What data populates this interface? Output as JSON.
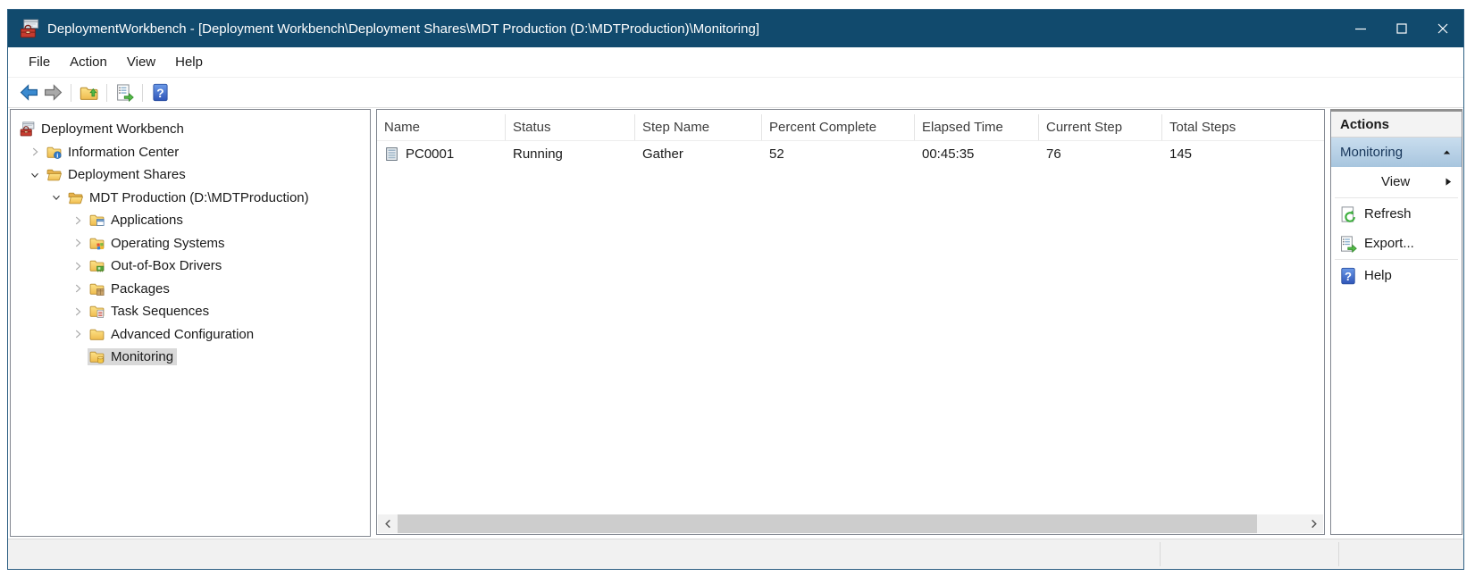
{
  "window": {
    "title": "DeploymentWorkbench - [Deployment Workbench\\Deployment Shares\\MDT Production (D:\\MDTProduction)\\Monitoring]",
    "app_icon": "toolbox-icon",
    "controls": [
      "minimize-icon",
      "maximize-icon",
      "close-icon"
    ]
  },
  "menu": {
    "items": [
      "File",
      "Action",
      "View",
      "Help"
    ]
  },
  "toolbar": {
    "items": [
      {
        "icon": "back-icon",
        "name": "back-button"
      },
      {
        "icon": "forward-icon",
        "name": "forward-button"
      },
      {
        "separator": true
      },
      {
        "icon": "up-one-level-icon",
        "name": "up-one-level-button"
      },
      {
        "separator": true
      },
      {
        "icon": "export-list-icon",
        "name": "export-list-button"
      },
      {
        "separator": true
      },
      {
        "icon": "help-icon",
        "name": "help-button"
      }
    ]
  },
  "tree": {
    "items": [
      {
        "label": "Deployment Workbench",
        "level": 0,
        "chevron": "none",
        "icon": "workbench-icon",
        "selected": false
      },
      {
        "label": "Information Center",
        "level": 1,
        "chevron": "collapsed",
        "icon": "folder-info-icon",
        "selected": false
      },
      {
        "label": "Deployment Shares",
        "level": 1,
        "chevron": "expanded",
        "icon": "folder-open-icon",
        "selected": false
      },
      {
        "label": "MDT Production (D:\\MDTProduction)",
        "level": 2,
        "chevron": "expanded",
        "icon": "folder-open-icon",
        "selected": false
      },
      {
        "label": "Applications",
        "level": 3,
        "chevron": "collapsed",
        "icon": "folder-app-icon",
        "selected": false
      },
      {
        "label": "Operating Systems",
        "level": 3,
        "chevron": "collapsed",
        "icon": "folder-os-icon",
        "selected": false
      },
      {
        "label": "Out-of-Box Drivers",
        "level": 3,
        "chevron": "collapsed",
        "icon": "folder-driver-icon",
        "selected": false
      },
      {
        "label": "Packages",
        "level": 3,
        "chevron": "collapsed",
        "icon": "folder-package-icon",
        "selected": false
      },
      {
        "label": "Task Sequences",
        "level": 3,
        "chevron": "collapsed",
        "icon": "folder-task-icon",
        "selected": false
      },
      {
        "label": "Advanced Configuration",
        "level": 3,
        "chevron": "collapsed",
        "icon": "folder-plain-icon",
        "selected": false
      },
      {
        "label": "Monitoring",
        "level": 3,
        "chevron": "none",
        "icon": "folder-monitor-icon",
        "selected": true
      }
    ]
  },
  "list": {
    "columns": [
      "Name",
      "Status",
      "Step Name",
      "Percent Complete",
      "Elapsed Time",
      "Current Step",
      "Total Steps"
    ],
    "rows": [
      {
        "icon": "computer-icon",
        "cells": [
          "PC0001",
          "Running",
          "Gather",
          "52",
          "00:45:35",
          "76",
          "145"
        ]
      }
    ]
  },
  "actions": {
    "title": "Actions",
    "group": {
      "label": "Monitoring",
      "collapse_icon": "chevron-up-icon"
    },
    "items": [
      {
        "label": "View",
        "icon": null,
        "submenu": true
      },
      {
        "separator": true
      },
      {
        "label": "Refresh",
        "icon": "refresh-icon"
      },
      {
        "label": "Export...",
        "icon": "export-list-icon"
      },
      {
        "separator": true
      },
      {
        "label": "Help",
        "icon": "help-icon"
      }
    ]
  },
  "colors": {
    "titlebar": "#114a6d",
    "tree_selection": "#d9d9d9",
    "actions_header_top": "#c9ddee",
    "actions_header_bottom": "#a7c5de",
    "pane_border": "#828790",
    "statusbar": "#f1f1f1"
  }
}
